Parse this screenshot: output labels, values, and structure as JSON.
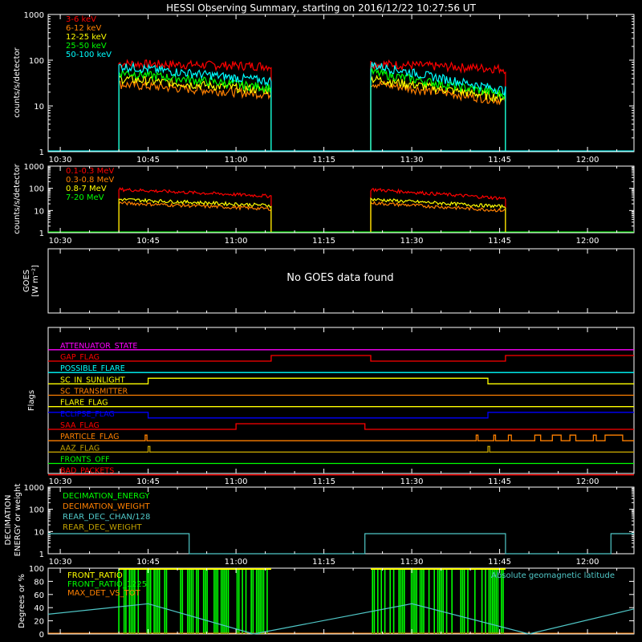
{
  "title": "HESSI Observing Summary, starting on 2016/12/22 10:27:56 UT",
  "time_ticks": [
    "10:30",
    "10:45",
    "11:00",
    "11:15",
    "11:30",
    "11:45",
    "12:00"
  ],
  "colors": {
    "frame": "#ffffff",
    "red": "#ff0000",
    "orange": "#ff8000",
    "yellow": "#ffff00",
    "green": "#00ff00",
    "cyan": "#00ffff",
    "magenta": "#ff00ff",
    "blue": "#0000ff",
    "olive": "#c0a000",
    "teal": "#50c8c8"
  },
  "chart_data": [
    {
      "id": "counts_lo",
      "type": "line",
      "ylabel": "counts/s/detector",
      "yscale": "log",
      "ylim": [
        1,
        1000
      ],
      "ytick_labels": [
        "1",
        "10",
        "100",
        "1000"
      ],
      "xlim": [
        "10:27:56",
        "12:07:56"
      ],
      "series": [
        {
          "name": "3-6 keV",
          "color": "#ff0000",
          "segments": [
            {
              "start": "10:40",
              "end": "11:06",
              "y_start": 85,
              "y_end": 75
            },
            {
              "start": "11:23",
              "end": "11:46",
              "y_start": 85,
              "y_end": 65
            }
          ]
        },
        {
          "name": "6-12 keV",
          "color": "#ff8000",
          "segments": [
            {
              "start": "10:40",
              "end": "11:06",
              "y_start": 30,
              "y_end": 18
            },
            {
              "start": "11:23",
              "end": "11:46",
              "y_start": 32,
              "y_end": 13
            }
          ]
        },
        {
          "name": "12-25 keV",
          "color": "#ffff00",
          "segments": [
            {
              "start": "10:40",
              "end": "11:06",
              "y_start": 40,
              "y_end": 22
            },
            {
              "start": "11:23",
              "end": "11:46",
              "y_start": 40,
              "y_end": 15
            }
          ]
        },
        {
          "name": "25-50 keV",
          "color": "#00ff00",
          "segments": [
            {
              "start": "10:40",
              "end": "11:06",
              "y_start": 55,
              "y_end": 25
            },
            {
              "start": "11:23",
              "end": "11:46",
              "y_start": 55,
              "y_end": 18
            }
          ]
        },
        {
          "name": "50-100 keV",
          "color": "#00ffff",
          "segments": [
            {
              "start": "10:40",
              "end": "11:06",
              "y_start": 75,
              "y_end": 35
            },
            {
              "start": "11:23",
              "end": "11:46",
              "y_start": 80,
              "y_end": 22
            }
          ]
        }
      ]
    },
    {
      "id": "counts_hi",
      "type": "line",
      "ylabel": "counts/s/detector",
      "yscale": "log",
      "ylim": [
        1,
        1000
      ],
      "ytick_labels": [
        "1",
        "10",
        "100",
        "1000"
      ],
      "series": [
        {
          "name": "0.1-0.3 MeV",
          "color": "#ff0000",
          "segments": [
            {
              "start": "10:40",
              "end": "11:06",
              "y_start": 90,
              "y_end": 45
            },
            {
              "start": "11:23",
              "end": "11:46",
              "y_start": 90,
              "y_end": 35
            }
          ]
        },
        {
          "name": "0.3-0.8 MeV",
          "color": "#ff8000",
          "segments": [
            {
              "start": "10:40",
              "end": "11:06",
              "y_start": 22,
              "y_end": 12
            },
            {
              "start": "11:23",
              "end": "11:46",
              "y_start": 22,
              "y_end": 10
            }
          ]
        },
        {
          "name": "0.8-7 MeV",
          "color": "#ffff00",
          "segments": [
            {
              "start": "10:40",
              "end": "11:06",
              "y_start": 32,
              "y_end": 17
            },
            {
              "start": "11:23",
              "end": "11:46",
              "y_start": 32,
              "y_end": 15
            }
          ]
        },
        {
          "name": "7-20 MeV",
          "color": "#00ff00",
          "segments": []
        }
      ]
    },
    {
      "id": "goes",
      "type": "line",
      "ylabel_lines": [
        "GOES",
        "[W m⁻²]"
      ],
      "message": "No GOES data found"
    },
    {
      "id": "flags",
      "type": "line",
      "ylabel": "Flags",
      "flags": [
        {
          "name": "ATTENUATOR_STATE",
          "color": "#ff00ff",
          "changes": [
            [
              "10:27:56",
              0
            ]
          ]
        },
        {
          "name": "GAP_FLAG",
          "color": "#ff0000",
          "changes": [
            [
              "10:27:56",
              0
            ],
            [
              "11:06",
              1
            ],
            [
              "11:23",
              0
            ],
            [
              "11:46",
              1
            ]
          ]
        },
        {
          "name": "POSSIBLE_FLARE",
          "color": "#00ffff",
          "changes": [
            [
              "10:27:56",
              0
            ]
          ]
        },
        {
          "name": "SC_IN_SUNLIGHT",
          "color": "#ffff00",
          "changes": [
            [
              "10:27:56",
              0
            ],
            [
              "10:45",
              1
            ],
            [
              "11:43",
              0
            ]
          ]
        },
        {
          "name": "SC_TRANSMITTER",
          "color": "#ff8000",
          "changes": [
            [
              "10:27:56",
              0
            ]
          ]
        },
        {
          "name": "FLARE_FLAG",
          "color": "#ffff00",
          "changes": [
            [
              "10:27:56",
              0
            ]
          ]
        },
        {
          "name": "ECLIPSE_FLAG",
          "color": "#0000ff",
          "changes": [
            [
              "10:27:56",
              1
            ],
            [
              "10:45",
              0
            ],
            [
              "11:43",
              1
            ]
          ]
        },
        {
          "name": "SAA_FLAG",
          "color": "#ff0000",
          "changes": [
            [
              "10:27:56",
              0
            ],
            [
              "11:00",
              1
            ],
            [
              "11:22",
              0
            ]
          ]
        },
        {
          "name": "PARTICLE_FLAG",
          "color": "#ff8000",
          "changes": [
            [
              "10:27:56",
              0
            ],
            [
              "10:44.5",
              1
            ],
            [
              "10:44.8",
              0
            ],
            [
              "11:41",
              1
            ],
            [
              "11:41.3",
              0
            ],
            [
              "11:44",
              1
            ],
            [
              "11:44.3",
              0
            ],
            [
              "11:46.5",
              1
            ],
            [
              "11:47",
              0
            ],
            [
              "11:51",
              1
            ],
            [
              "11:52",
              0
            ],
            [
              "11:54",
              1
            ],
            [
              "11:55.5",
              0
            ],
            [
              "11:57",
              1
            ],
            [
              "11:58",
              0
            ],
            [
              "12:01",
              1
            ],
            [
              "12:01.5",
              0
            ],
            [
              "12:03",
              1
            ],
            [
              "12:06",
              0
            ]
          ]
        },
        {
          "name": "AAZ_FLAG",
          "color": "#c0a000",
          "changes": [
            [
              "10:27:56",
              0
            ],
            [
              "10:45",
              1
            ],
            [
              "10:45.3",
              0
            ],
            [
              "11:43",
              1
            ],
            [
              "11:43.3",
              0
            ]
          ]
        },
        {
          "name": "FRONTS_OFF",
          "color": "#00ff00",
          "changes": [
            [
              "10:27:56",
              0
            ]
          ]
        },
        {
          "name": "BAD_PACKETS",
          "color": "#ff0000",
          "changes": [
            [
              "10:27:56",
              0
            ]
          ]
        }
      ]
    },
    {
      "id": "decimation",
      "type": "line",
      "ylabel_lines": [
        "DECIMATION",
        "ENERGY or weight"
      ],
      "yscale": "log",
      "ylim": [
        1,
        1000
      ],
      "ytick_labels": [
        "1",
        "10",
        "100",
        "1000"
      ],
      "series": [
        {
          "name": "DECIMATION_ENERGY",
          "color": "#00ff00"
        },
        {
          "name": "DECIMATION_WEIGHT",
          "color": "#ff8000"
        },
        {
          "name": "REAR_DEC_CHAN/128",
          "color": "#50c8c8",
          "steps": [
            [
              "10:27:56",
              8
            ],
            [
              "10:52",
              1
            ],
            [
              "11:22",
              8
            ],
            [
              "11:46",
              1
            ],
            [
              "12:04",
              8
            ]
          ]
        },
        {
          "name": "REAR_DEC_WEIGHT",
          "color": "#c0a000"
        }
      ]
    },
    {
      "id": "geo",
      "type": "line",
      "ylabel": "Degrees or %",
      "ylim": [
        0,
        100
      ],
      "ytick_labels": [
        "0",
        "20",
        "40",
        "60",
        "80",
        "100"
      ],
      "series": [
        {
          "name": "FRONT_RATIO",
          "color": "#ffff00"
        },
        {
          "name": "FRONT_RATIO_1225",
          "color": "#00ff00",
          "spans": [
            [
              "10:40",
              "11:06"
            ],
            [
              "11:23",
              "11:46"
            ]
          ]
        },
        {
          "name": "MAX_DET_VS_TOT",
          "color": "#ff8000"
        },
        {
          "name": "Absolute geomagnetic latitude",
          "color": "#50c8c8",
          "points": [
            [
              "10:27:56",
              30
            ],
            [
              "10:45",
              46
            ],
            [
              "11:03",
              0
            ],
            [
              "11:30",
              46
            ],
            [
              "11:50",
              0
            ],
            [
              "12:07:56",
              38
            ]
          ]
        }
      ]
    }
  ]
}
